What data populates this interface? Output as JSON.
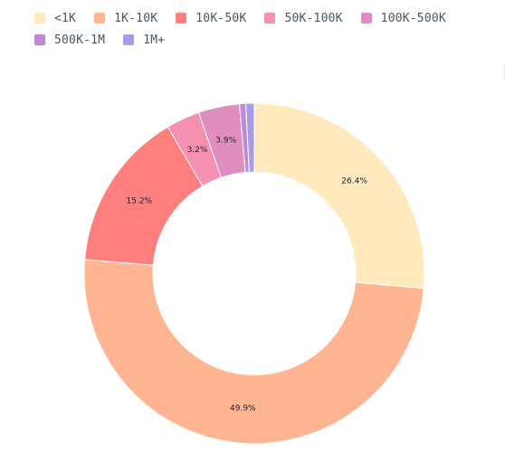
{
  "chart_data": {
    "type": "pie",
    "title": "",
    "donut": true,
    "legend_position": "top-left",
    "categories": [
      "<1K",
      "1K-10K",
      "10K-50K",
      "50K-100K",
      "100K-500K",
      "500K-1M",
      "1M+"
    ],
    "values": [
      26.4,
      49.9,
      15.2,
      3.2,
      3.9,
      0.6,
      0.8
    ],
    "labels": [
      "26.4%",
      "49.9%",
      "15.2%",
      "3.2%",
      "3.9%",
      "",
      ""
    ],
    "colors": [
      "#FFE9BD",
      "#FFB592",
      "#FF7F7F",
      "#F590B0",
      "#E08DBF",
      "#C088D6",
      "#A89BE8"
    ]
  }
}
